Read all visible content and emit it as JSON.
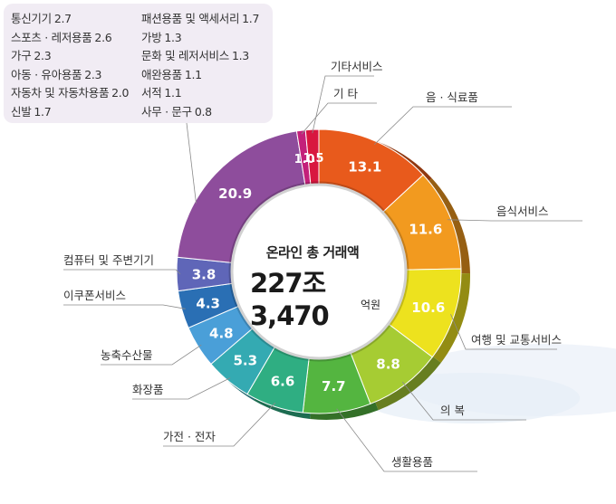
{
  "legend": [
    {
      "label": "통신기기",
      "value": "2.7"
    },
    {
      "label": "스포츠 · 레저용품",
      "value": "2.6"
    },
    {
      "label": "가구",
      "value": "2.3"
    },
    {
      "label": "아동 · 유아용품",
      "value": "2.3"
    },
    {
      "label": "자동차 및 자동차용품",
      "value": "2.0"
    },
    {
      "label": "신발",
      "value": "1.7"
    },
    {
      "label": "패션용품 및 액세서리",
      "value": "1.7"
    },
    {
      "label": "가방",
      "value": "1.3"
    },
    {
      "label": "문화 및 레저서비스",
      "value": "1.3"
    },
    {
      "label": "애완용품",
      "value": "1.1"
    },
    {
      "label": "서적",
      "value": "1.1"
    },
    {
      "label": "사무 · 문구",
      "value": "0.8"
    }
  ],
  "center": {
    "title": "온라인 총 거래액",
    "total": "227조 3,470",
    "unit": "억원"
  },
  "chart_data": {
    "type": "pie",
    "slices": [
      {
        "label": "음 · 식료품",
        "value": 13.1,
        "color": "#e85a1c"
      },
      {
        "label": "음식서비스",
        "value": 11.6,
        "color": "#f29a1f"
      },
      {
        "label": "여행 및 교통서비스",
        "value": 10.6,
        "color": "#ede21e"
      },
      {
        "label": "의 복",
        "value": 8.8,
        "color": "#a6cc33"
      },
      {
        "label": "생활용품",
        "value": 7.7,
        "color": "#54b540"
      },
      {
        "label": "가전 · 전자",
        "value": 6.6,
        "color": "#2fae82"
      },
      {
        "label": "화장품",
        "value": 5.3,
        "color": "#34aab2"
      },
      {
        "label": "농축수산물",
        "value": 4.8,
        "color": "#4a9fd8"
      },
      {
        "label": "이쿠폰서비스",
        "value": 4.3,
        "color": "#2a6fb4"
      },
      {
        "label": "컴퓨터 및 주변기기",
        "value": 3.8,
        "color": "#5f66b8"
      },
      {
        "label": "",
        "value": 20.9,
        "color": "#8e4d9c"
      },
      {
        "label": "기 타",
        "value": 1.0,
        "color": "#c3207a"
      },
      {
        "label": "기타서비스",
        "value": 1.5,
        "color": "#d8173f"
      }
    ],
    "value_labels": [
      "13.1",
      "11.6",
      "10.6",
      "8.8",
      "7.7",
      "6.6",
      "5.3",
      "4.8",
      "4.3",
      "3.8",
      "20.9",
      "1.0",
      "1.5"
    ]
  }
}
